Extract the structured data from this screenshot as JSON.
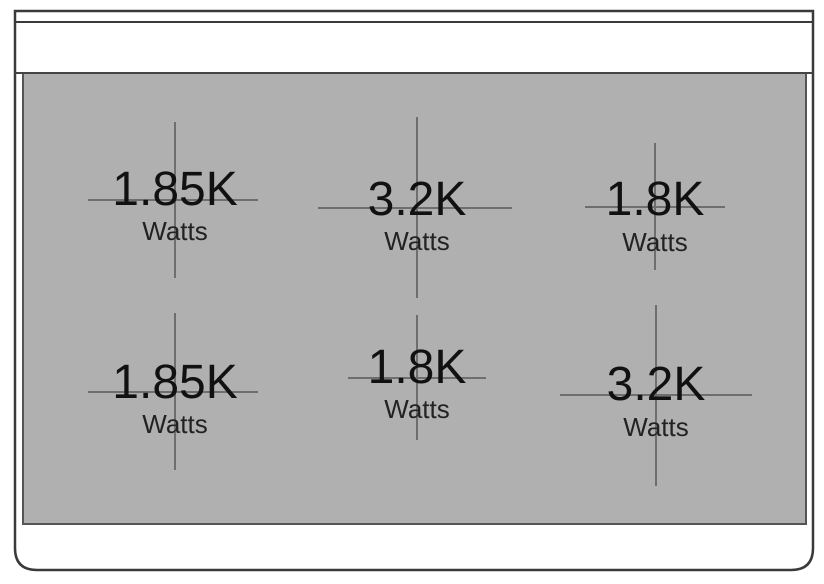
{
  "cooktop": {
    "panel_color": "#b0b0b0",
    "frame_color": "#3a3a3a",
    "burners": [
      {
        "value": "1.85K",
        "unit": "Watts"
      },
      {
        "value": "3.2K",
        "unit": "Watts"
      },
      {
        "value": "1.8K",
        "unit": "Watts"
      },
      {
        "value": "1.85K",
        "unit": "Watts"
      },
      {
        "value": "1.8K",
        "unit": "Watts"
      },
      {
        "value": "3.2K",
        "unit": "Watts"
      }
    ]
  }
}
